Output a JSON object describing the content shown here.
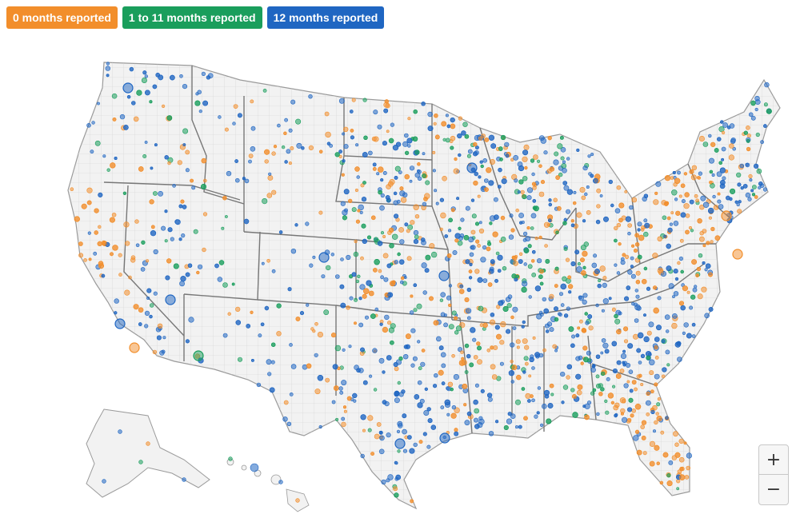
{
  "legend": [
    {
      "label": "0 months reported",
      "color": "#f28e2b"
    },
    {
      "label": "1 to 11 months reported",
      "color": "#1a9e5c"
    },
    {
      "label": "12 months reported",
      "color": "#1f66c2"
    }
  ],
  "zoom": {
    "in_label": "+",
    "out_label": "−"
  },
  "colors": {
    "land": "#f2f2f2",
    "state_border": "#777777",
    "county_border": "#d2d2d2"
  }
}
